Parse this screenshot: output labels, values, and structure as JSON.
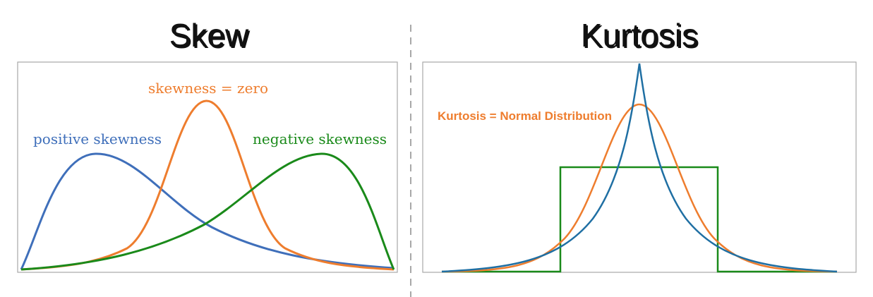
{
  "skew": {
    "title": "Skew",
    "labels": {
      "positive": "positive skewness",
      "zero": "skewness = zero",
      "negative": "negative skewness"
    }
  },
  "kurtosis": {
    "title": "Kurtosis",
    "labels": {
      "normal": "Kurtosis = Normal Distribution"
    }
  },
  "colors": {
    "blue": "#3f6fba",
    "orange": "#ee7d2e",
    "green": "#1a8a1a",
    "teal": "#1f6fa3",
    "box_border": "#a8a8a8",
    "divider": "#a8a8a8",
    "title_shadow": "#b5b5b5"
  }
}
